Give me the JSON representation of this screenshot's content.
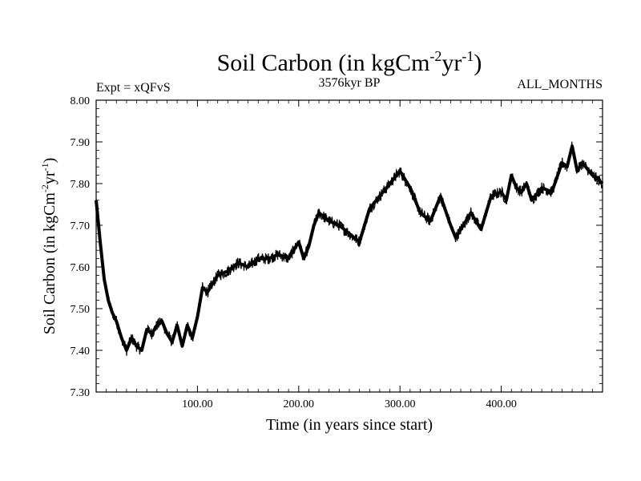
{
  "chart_data": {
    "type": "line",
    "title": {
      "main": "Soil Carbon (in kgCm",
      "sup1": "-2",
      "mid": "yr",
      "sup2": "-1",
      "end": ")"
    },
    "subtitle_left": "Expt = xQFvS",
    "subtitle_center": "3576kyr BP",
    "subtitle_right": "ALL_MONTHS",
    "xlabel": "Time (in years since start)",
    "ylabel": {
      "main": "Soil Carbon (in kgCm",
      "sup1": "-2",
      "mid": "yr",
      "sup2": "-1",
      "end": ")"
    },
    "xlim": [
      0,
      500
    ],
    "ylim": [
      7.3,
      8.0
    ],
    "x_ticks": [
      100,
      200,
      300,
      400
    ],
    "x_tick_labels": [
      "100.00",
      "200.00",
      "300.00",
      "400.00"
    ],
    "y_ticks": [
      7.3,
      7.4,
      7.5,
      7.6,
      7.7,
      7.8,
      7.9,
      8.0
    ],
    "y_tick_labels": [
      "7.30",
      "7.40",
      "7.50",
      "7.60",
      "7.70",
      "7.80",
      "7.90",
      "8.00"
    ],
    "series": [
      {
        "name": "Soil Carbon",
        "color": "#000000",
        "x": [
          0,
          4,
          8,
          12,
          16,
          20,
          25,
          30,
          35,
          40,
          45,
          50,
          55,
          60,
          65,
          70,
          75,
          80,
          85,
          90,
          95,
          100,
          105,
          110,
          120,
          130,
          140,
          150,
          160,
          170,
          180,
          190,
          200,
          205,
          210,
          215,
          220,
          225,
          230,
          240,
          250,
          260,
          265,
          270,
          280,
          290,
          300,
          305,
          310,
          320,
          330,
          335,
          340,
          350,
          355,
          360,
          370,
          380,
          390,
          400,
          405,
          410,
          415,
          420,
          425,
          430,
          440,
          450,
          460,
          465,
          470,
          475,
          480,
          490,
          500
        ],
        "y": [
          7.76,
          7.66,
          7.57,
          7.52,
          7.49,
          7.47,
          7.43,
          7.4,
          7.43,
          7.41,
          7.4,
          7.45,
          7.44,
          7.46,
          7.47,
          7.44,
          7.42,
          7.46,
          7.41,
          7.46,
          7.43,
          7.48,
          7.55,
          7.54,
          7.58,
          7.59,
          7.61,
          7.6,
          7.62,
          7.62,
          7.63,
          7.62,
          7.66,
          7.62,
          7.65,
          7.7,
          7.73,
          7.72,
          7.71,
          7.7,
          7.68,
          7.66,
          7.7,
          7.74,
          7.77,
          7.8,
          7.83,
          7.81,
          7.79,
          7.73,
          7.71,
          7.74,
          7.77,
          7.7,
          7.67,
          7.69,
          7.73,
          7.69,
          7.77,
          7.78,
          7.76,
          7.82,
          7.79,
          7.78,
          7.8,
          7.76,
          7.79,
          7.78,
          7.85,
          7.84,
          7.89,
          7.83,
          7.85,
          7.82,
          7.8
        ]
      }
    ]
  }
}
